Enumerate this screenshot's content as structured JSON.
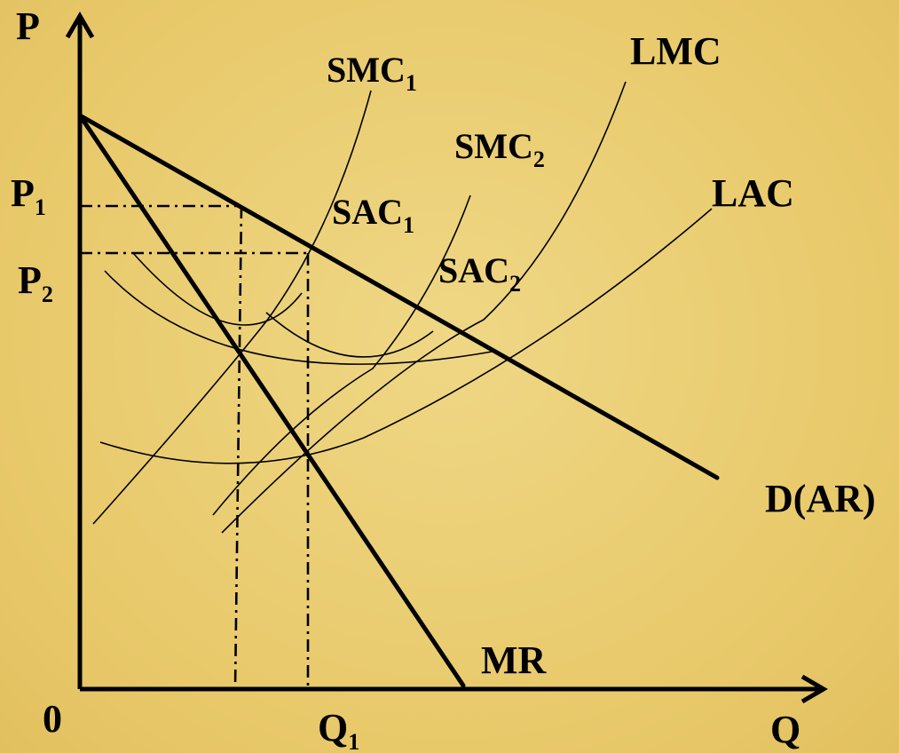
{
  "axes": {
    "y_label": "P",
    "x_label": "Q",
    "origin_label": "0"
  },
  "price_labels": [
    {
      "base": "P",
      "sub": "1"
    },
    {
      "base": "P",
      "sub": "2"
    }
  ],
  "quantity_labels": [
    {
      "base": "Q",
      "sub": "1"
    }
  ],
  "curves": {
    "smc1": {
      "base": "SMC",
      "sub": "1"
    },
    "smc2": {
      "base": "SMC",
      "sub": "2"
    },
    "lmc": {
      "base": "LMC",
      "sub": ""
    },
    "lac": {
      "base": "LAC",
      "sub": ""
    },
    "sac1": {
      "base": "SAC",
      "sub": "1"
    },
    "sac2": {
      "base": "SAC",
      "sub": "2"
    },
    "demand": {
      "base": "D(AR)",
      "sub": ""
    },
    "mr": {
      "base": "MR",
      "sub": ""
    }
  }
}
